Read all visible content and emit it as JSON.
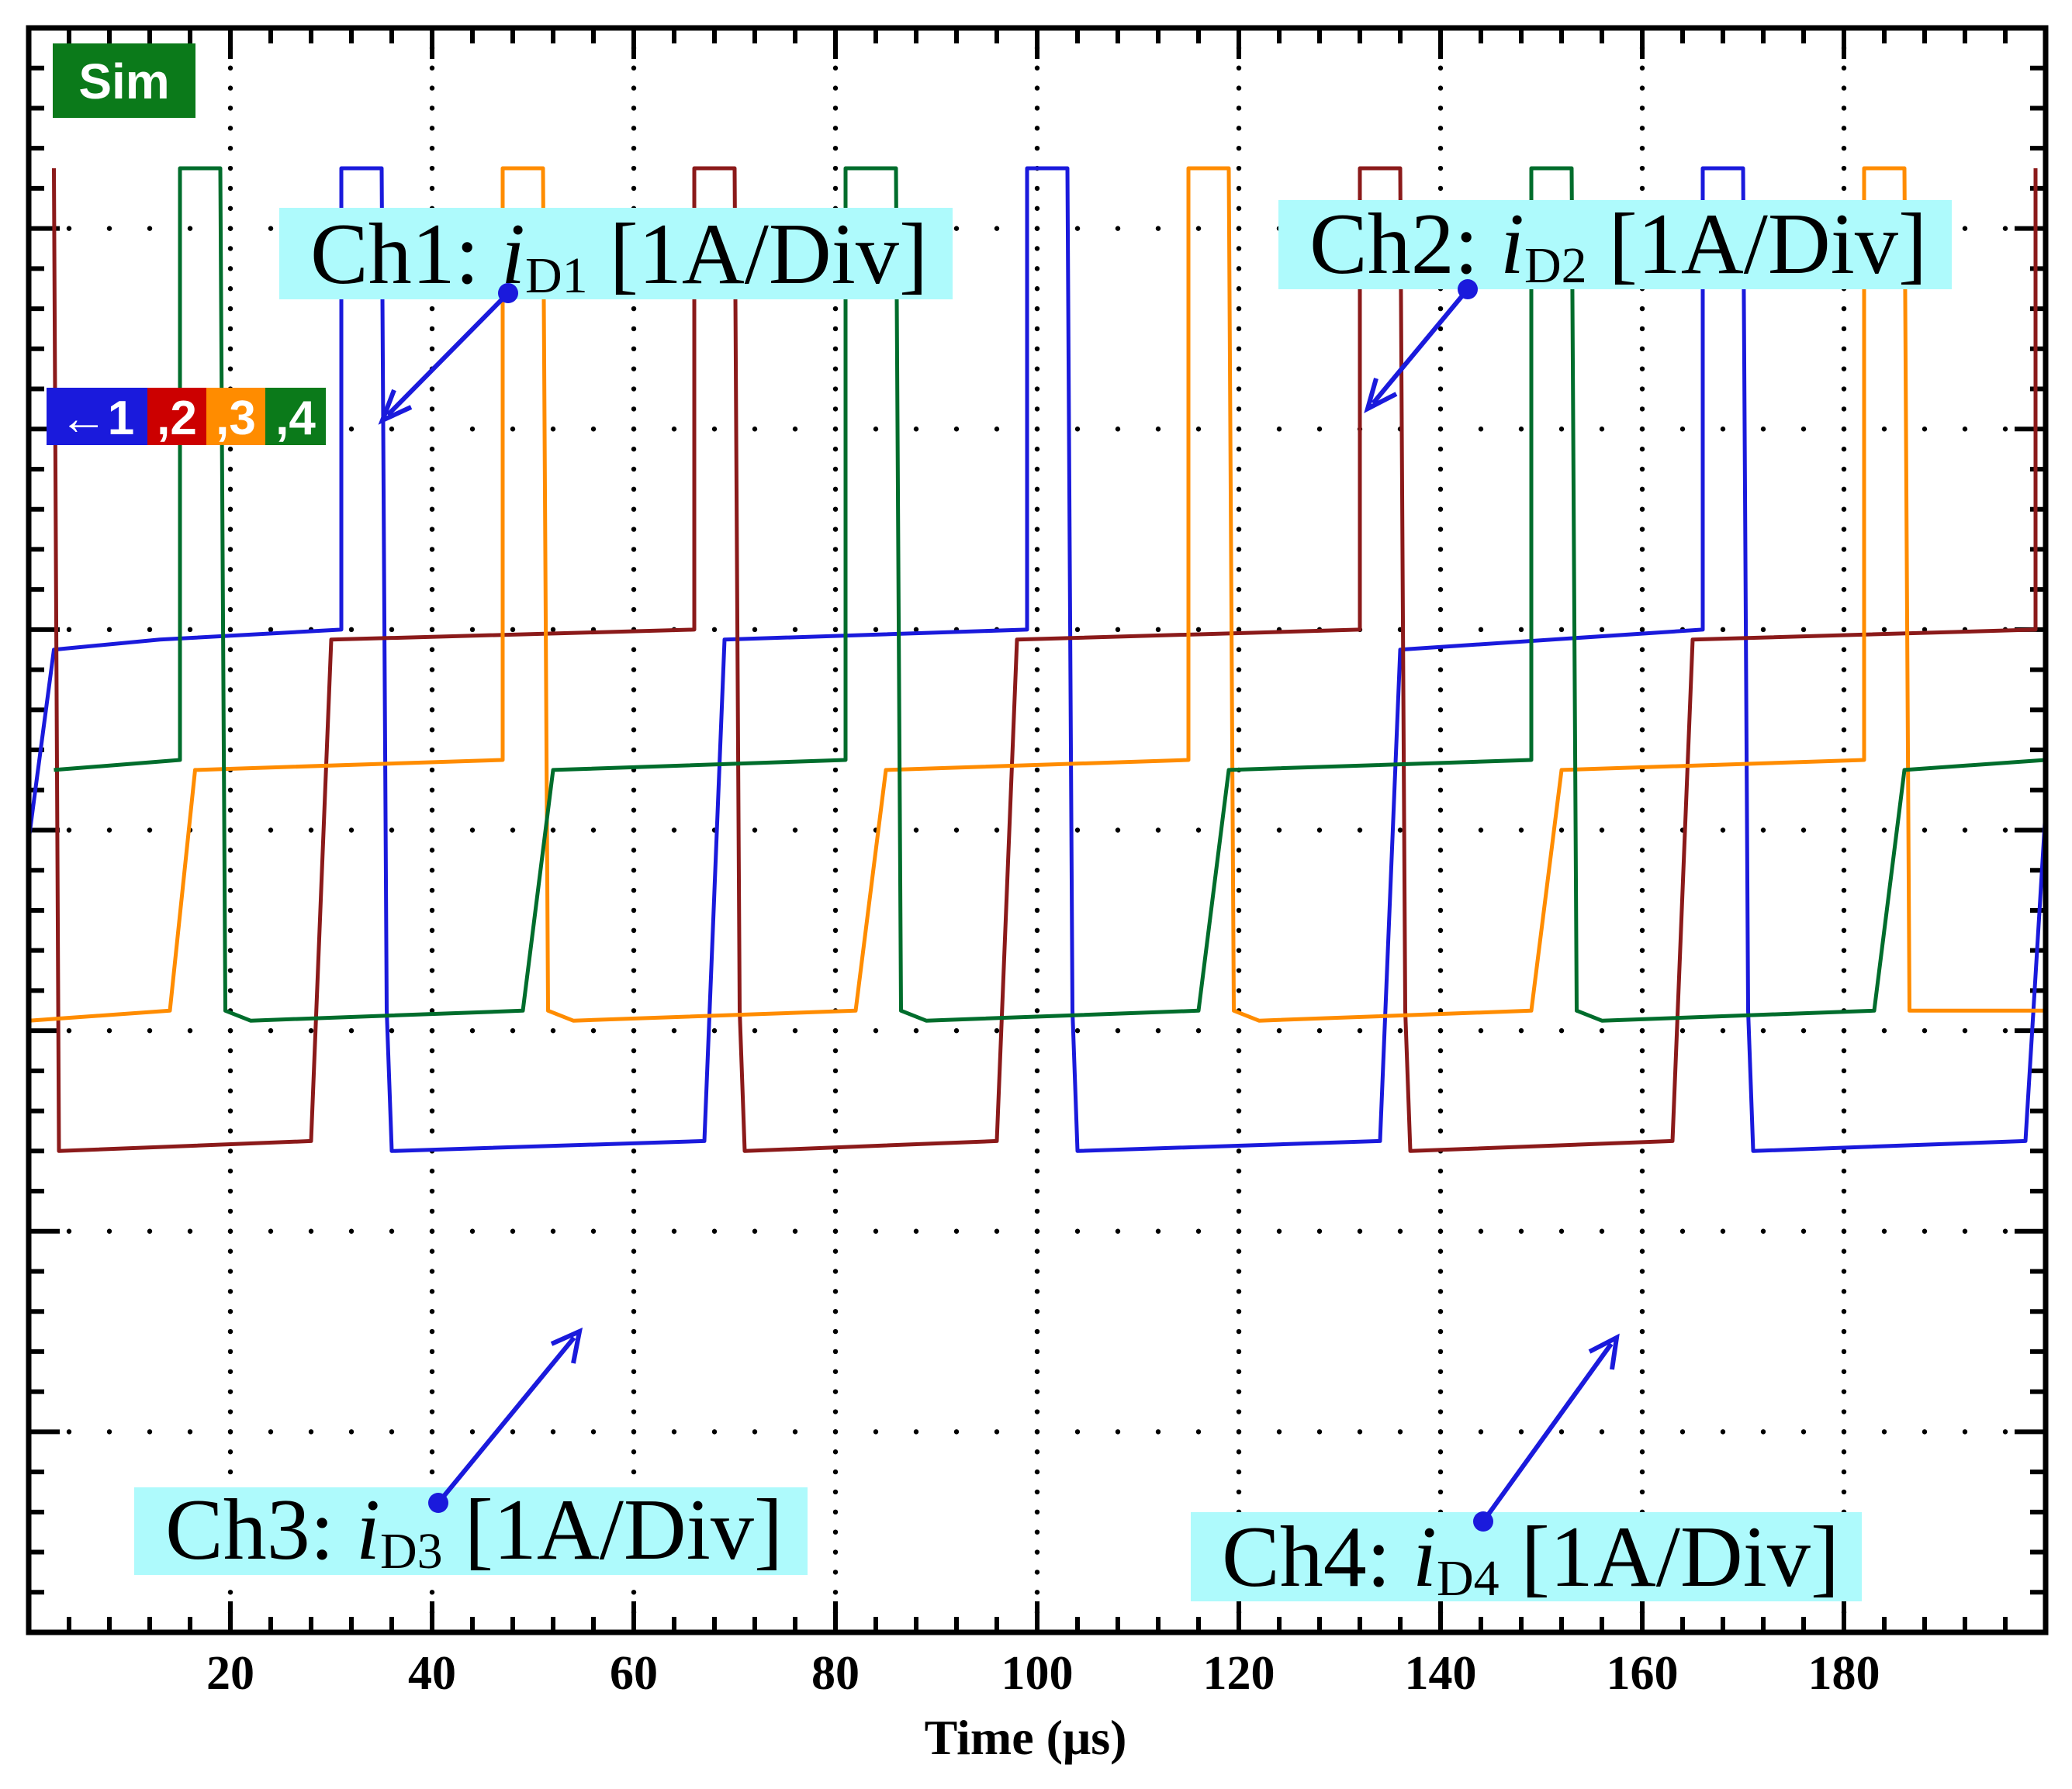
{
  "chart_data": {
    "type": "line",
    "badge": "Sim",
    "channel_marker": {
      "items": [
        {
          "label": "←1",
          "color": "#1a1adc"
        },
        {
          "label": ",2",
          "color": "#cc0000"
        },
        {
          "label": ",3",
          "color": "#ff8c00"
        },
        {
          "label": ",4",
          "color": "#006d2c"
        }
      ]
    },
    "xlabel": "Time (μs)",
    "xlim": [
      0,
      200
    ],
    "ylim": [
      -4,
      4
    ],
    "x_ticks": [
      20,
      40,
      60,
      80,
      100,
      120,
      140,
      160,
      180
    ],
    "grid": true,
    "annotations": [
      {
        "prefix": "Ch1: ",
        "var": "i",
        "sub": "D1",
        "suffix": " [1A/Div]"
      },
      {
        "prefix": "Ch2: ",
        "var": "i",
        "sub": "D2",
        "suffix": " [1A/Div]"
      },
      {
        "prefix": "Ch3: ",
        "var": "i",
        "sub": "D3",
        "suffix": " [1A/Div]"
      },
      {
        "prefix": "Ch4: ",
        "var": "i",
        "sub": "D4",
        "suffix": " [1A/Div]"
      }
    ],
    "series": [
      {
        "name": "Ch1",
        "color": "#1a1adc",
        "points": [
          [
            0,
            -0.05
          ],
          [
            2.5,
            0.9
          ],
          [
            13,
            0.95
          ],
          [
            31,
            1
          ],
          [
            31,
            3.3
          ],
          [
            35,
            3.3
          ],
          [
            35.5,
            -0.9
          ],
          [
            36,
            -1.6
          ],
          [
            67,
            -1.55
          ],
          [
            69,
            0.95
          ],
          [
            99,
            1
          ],
          [
            99,
            3.3
          ],
          [
            103,
            3.3
          ],
          [
            103.5,
            -0.9
          ],
          [
            104,
            -1.6
          ],
          [
            134,
            -1.55
          ],
          [
            136,
            0.9
          ],
          [
            166,
            1
          ],
          [
            166,
            3.3
          ],
          [
            170,
            3.3
          ],
          [
            170.5,
            -0.9
          ],
          [
            171,
            -1.6
          ],
          [
            198,
            -1.55
          ],
          [
            200,
            0.1
          ]
        ]
      },
      {
        "name": "Ch2",
        "color": "#8b1a1a",
        "points": [
          [
            2.5,
            3.3
          ],
          [
            3,
            -1.6
          ],
          [
            28,
            -1.55
          ],
          [
            30,
            0.95
          ],
          [
            66,
            1
          ],
          [
            66,
            3.3
          ],
          [
            70,
            3.3
          ],
          [
            70.5,
            -0.9
          ],
          [
            71,
            -1.6
          ],
          [
            96,
            -1.55
          ],
          [
            98,
            0.95
          ],
          [
            132,
            1
          ],
          [
            132,
            3.3
          ],
          [
            136,
            3.3
          ],
          [
            136.5,
            -0.9
          ],
          [
            137,
            -1.6
          ],
          [
            163,
            -1.55
          ],
          [
            165,
            0.95
          ],
          [
            199,
            1
          ],
          [
            199,
            3.3
          ]
        ]
      },
      {
        "name": "Ch3",
        "color": "#ff8c00",
        "points": [
          [
            0,
            -0.95
          ],
          [
            14,
            -0.9
          ],
          [
            16.5,
            0.3
          ],
          [
            47,
            0.35
          ],
          [
            47,
            3.3
          ],
          [
            51,
            3.3
          ],
          [
            51.5,
            -0.9
          ],
          [
            54,
            -0.95
          ],
          [
            82,
            -0.9
          ],
          [
            85,
            0.3
          ],
          [
            115,
            0.35
          ],
          [
            115,
            3.3
          ],
          [
            119,
            3.3
          ],
          [
            119.5,
            -0.9
          ],
          [
            122,
            -0.95
          ],
          [
            149,
            -0.9
          ],
          [
            152,
            0.3
          ],
          [
            182,
            0.35
          ],
          [
            182,
            3.3
          ],
          [
            186,
            3.3
          ],
          [
            186.5,
            -0.9
          ],
          [
            200,
            -0.9
          ]
        ]
      },
      {
        "name": "Ch4",
        "color": "#006d2c",
        "points": [
          [
            2.5,
            0.3
          ],
          [
            15,
            0.35
          ],
          [
            15,
            3.3
          ],
          [
            19,
            3.3
          ],
          [
            19.5,
            -0.9
          ],
          [
            22,
            -0.95
          ],
          [
            49,
            -0.9
          ],
          [
            52,
            0.3
          ],
          [
            81,
            0.35
          ],
          [
            81,
            3.3
          ],
          [
            86,
            3.3
          ],
          [
            86.5,
            -0.9
          ],
          [
            89,
            -0.95
          ],
          [
            116,
            -0.9
          ],
          [
            119,
            0.3
          ],
          [
            149,
            0.35
          ],
          [
            149,
            3.3
          ],
          [
            153,
            3.3
          ],
          [
            153.5,
            -0.9
          ],
          [
            156,
            -0.95
          ],
          [
            183,
            -0.9
          ],
          [
            186,
            0.3
          ],
          [
            200,
            0.35
          ]
        ]
      }
    ]
  }
}
